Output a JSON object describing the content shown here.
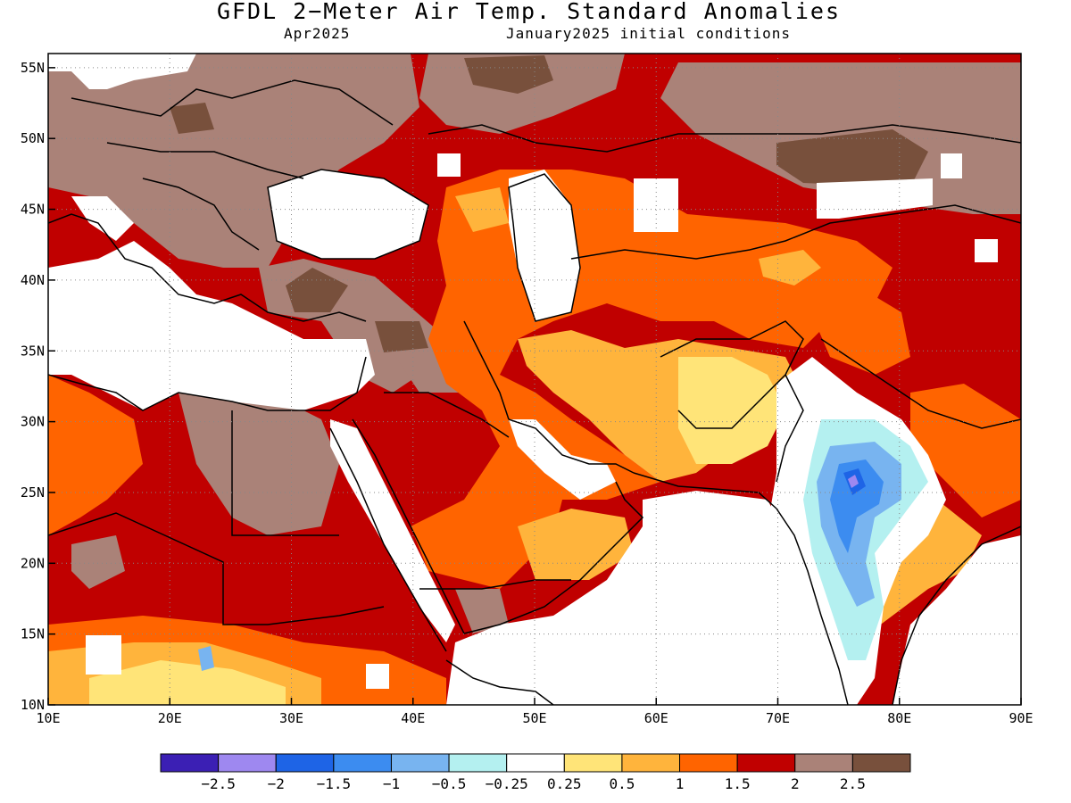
{
  "header": {
    "title": "GFDL 2−Meter Air Temp. Standard Anomalies",
    "valid_month": "Apr2025",
    "init": "January2025 initial conditions"
  },
  "map": {
    "lon_range": [
      10,
      90
    ],
    "lat_range": [
      10,
      56
    ],
    "lat_ticks": [
      {
        "value": 10,
        "label": "10N"
      },
      {
        "value": 15,
        "label": "15N"
      },
      {
        "value": 20,
        "label": "20N"
      },
      {
        "value": 25,
        "label": "25N"
      },
      {
        "value": 30,
        "label": "30N"
      },
      {
        "value": 35,
        "label": "35N"
      },
      {
        "value": 40,
        "label": "40N"
      },
      {
        "value": 45,
        "label": "45N"
      },
      {
        "value": 50,
        "label": "50N"
      },
      {
        "value": 55,
        "label": "55N"
      }
    ],
    "lon_ticks": [
      {
        "value": 10,
        "label": "10E"
      },
      {
        "value": 20,
        "label": "20E"
      },
      {
        "value": 30,
        "label": "30E"
      },
      {
        "value": 40,
        "label": "40E"
      },
      {
        "value": 50,
        "label": "50E"
      },
      {
        "value": 60,
        "label": "60E"
      },
      {
        "value": 70,
        "label": "70E"
      },
      {
        "value": 80,
        "label": "80E"
      },
      {
        "value": 90,
        "label": "90E"
      }
    ],
    "gridlines": "dotted",
    "background_color": "#ffffff"
  },
  "colorbar": {
    "colors": [
      "#3b1fb4",
      "#9e88f0",
      "#1e64e6",
      "#3c8cf0",
      "#78b4f0",
      "#b4f0f0",
      "#ffffff",
      "#ffe478",
      "#ffb43c",
      "#ff6400",
      "#c00000",
      "#aa8278",
      "#78503c"
    ],
    "labels": [
      "−2.5",
      "−2",
      "−1.5",
      "−1",
      "−0.5",
      "−0.25",
      "0.25",
      "0.5",
      "1",
      "1.5",
      "2",
      "2.5"
    ]
  }
}
